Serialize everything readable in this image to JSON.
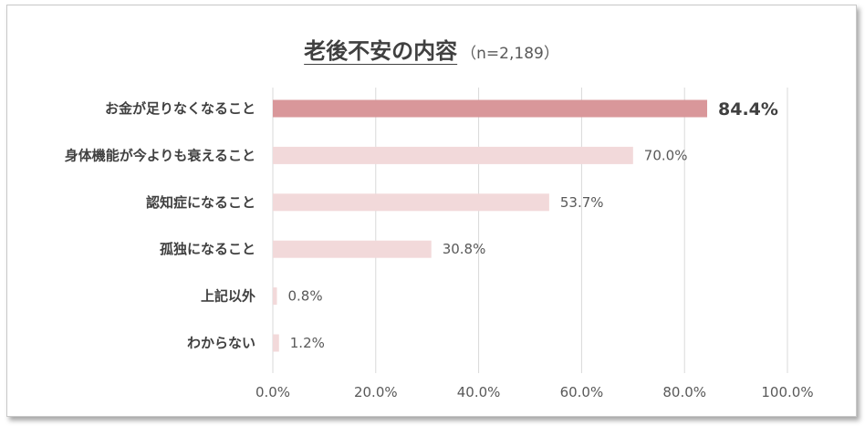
{
  "chart_data": {
    "type": "bar",
    "orientation": "horizontal",
    "title": "老後不安の内容",
    "note": "（n=2,189）",
    "categories": [
      "お金が足りなくなること",
      "身体機能が今よりも衰えること",
      "認知症になること",
      "孤独になること",
      "上記以外",
      "わからない"
    ],
    "values": [
      84.4,
      70.0,
      53.7,
      30.8,
      0.8,
      1.2
    ],
    "value_labels": [
      "84.4%",
      "70.0%",
      "53.7%",
      "30.8%",
      "0.8%",
      "1.2%"
    ],
    "highlight_index": 0,
    "xlim": [
      0,
      100
    ],
    "x_ticks": [
      "0.0%",
      "20.0%",
      "40.0%",
      "60.0%",
      "80.0%",
      "100.0%"
    ],
    "grid": "vertical",
    "colors": {
      "highlight": "#d9979a",
      "bar": "#f2d9da"
    }
  }
}
